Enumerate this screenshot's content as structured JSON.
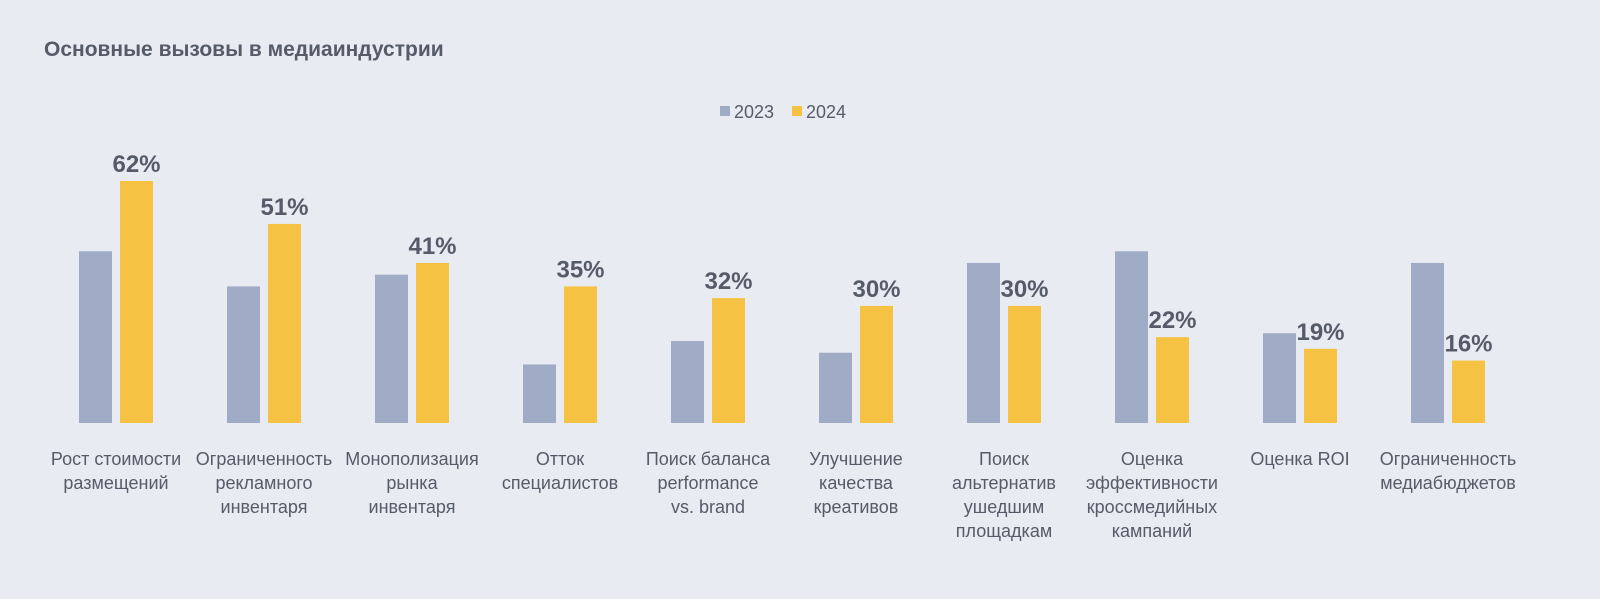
{
  "chart_data": {
    "type": "bar",
    "title": "Основные вызовы в медиаиндустрии",
    "categories": [
      "Рост стоимости\nразмещений",
      "Ограниченность\nрекламного\nинвентаря",
      "Монополизация\nрынка\nинвентаря",
      "Отток\nспециалистов",
      "Поиск баланса\nperformance\nvs. brand",
      "Улучшение\nкачества\nкреативов",
      "Поиск\nальтернатив\nушедшим\nплощадкам",
      "Оценка\nэффективности\nкроссмедийных\nкампаний",
      "Оценка ROI",
      "Ограниченность\nмедиабюджетов"
    ],
    "series": [
      {
        "name": "2023",
        "color": "#a0abc5",
        "values": [
          44,
          35,
          38,
          15,
          21,
          18,
          41,
          44,
          23,
          41
        ]
      },
      {
        "name": "2024",
        "color": "#f5c244",
        "values": [
          62,
          51,
          41,
          35,
          32,
          30,
          30,
          22,
          19,
          16
        ],
        "value_labels": [
          "62%",
          "51%",
          "41%",
          "35%",
          "32%",
          "30%",
          "30%",
          "22%",
          "19%",
          "16%"
        ]
      }
    ],
    "legend": "top"
  }
}
